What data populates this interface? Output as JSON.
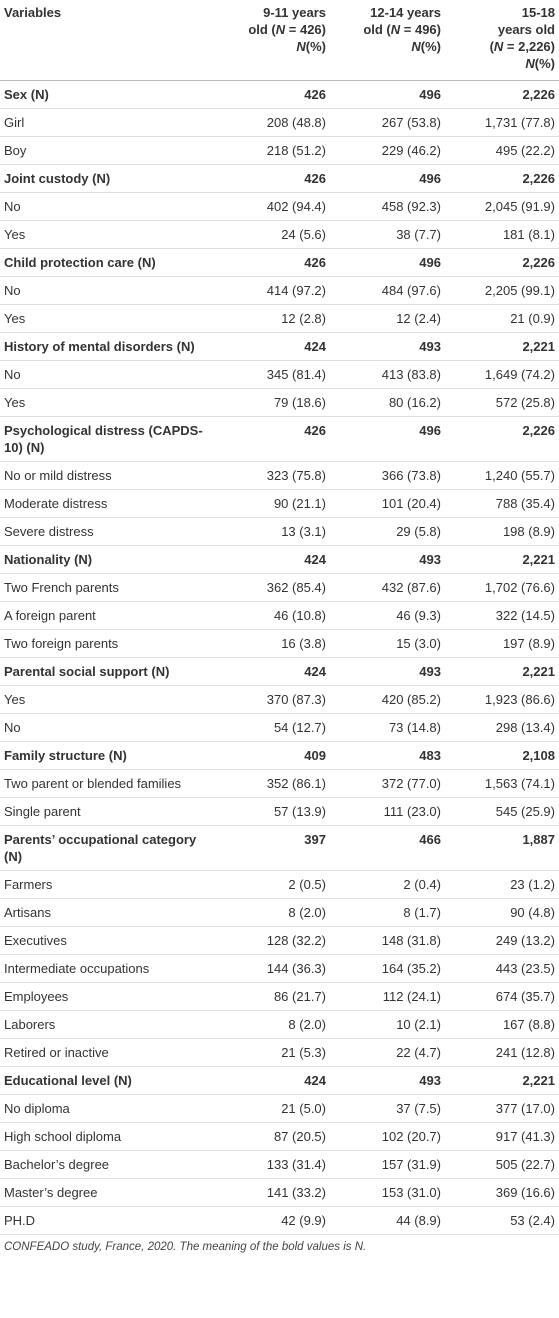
{
  "table": {
    "header": [
      [
        [
          {
            "text": "Variables"
          }
        ]
      ],
      [
        [
          {
            "text": "9-11 years"
          }
        ],
        [
          {
            "text": "old ("
          },
          {
            "text": "N",
            "italic": true
          },
          {
            "text": " = 426)"
          }
        ],
        [
          {
            "text": "N",
            "italic": true
          },
          {
            "text": "(%)"
          }
        ]
      ],
      [
        [
          {
            "text": "12-14 years"
          }
        ],
        [
          {
            "text": "old ("
          },
          {
            "text": "N",
            "italic": true
          },
          {
            "text": " = 496)"
          }
        ],
        [
          {
            "text": "N",
            "italic": true
          },
          {
            "text": "(%)"
          }
        ]
      ],
      [
        [
          {
            "text": "15-18"
          }
        ],
        [
          {
            "text": "years old"
          }
        ],
        [
          {
            "text": "("
          },
          {
            "text": "N",
            "italic": true
          },
          {
            "text": " = 2,226)"
          }
        ],
        [
          {
            "text": "N",
            "italic": true
          },
          {
            "text": "(%)"
          }
        ]
      ]
    ],
    "rows": [
      {
        "label": "Sex (N)",
        "values": [
          "426",
          "496",
          "2,226"
        ],
        "bold": true
      },
      {
        "label": "Girl",
        "values": [
          "208 (48.8)",
          "267 (53.8)",
          "1,731 (77.8)"
        ]
      },
      {
        "label": "Boy",
        "values": [
          "218 (51.2)",
          "229 (46.2)",
          "495 (22.2)"
        ]
      },
      {
        "label": "Joint custody (N)",
        "values": [
          "426",
          "496",
          "2,226"
        ],
        "bold": true
      },
      {
        "label": "No",
        "values": [
          "402 (94.4)",
          "458 (92.3)",
          "2,045 (91.9)"
        ]
      },
      {
        "label": "Yes",
        "values": [
          "24 (5.6)",
          "38 (7.7)",
          "181 (8.1)"
        ]
      },
      {
        "label": "Child protection care (N)",
        "values": [
          "426",
          "496",
          "2,226"
        ],
        "bold": true
      },
      {
        "label": "No",
        "values": [
          "414 (97.2)",
          "484 (97.6)",
          "2,205 (99.1)"
        ]
      },
      {
        "label": "Yes",
        "values": [
          "12 (2.8)",
          "12 (2.4)",
          "21 (0.9)"
        ]
      },
      {
        "label": "History of mental disorders (N)",
        "values": [
          "424",
          "493",
          "2,221"
        ],
        "bold": true
      },
      {
        "label": "No",
        "values": [
          "345 (81.4)",
          "413 (83.8)",
          "1,649 (74.2)"
        ]
      },
      {
        "label": "Yes",
        "values": [
          "79 (18.6)",
          "80 (16.2)",
          "572 (25.8)"
        ]
      },
      {
        "label": "Psychological distress (CAPDS-10) (N)",
        "values": [
          "426",
          "496",
          "2,226"
        ],
        "bold": true
      },
      {
        "label": "No or mild distress",
        "values": [
          "323 (75.8)",
          "366 (73.8)",
          "1,240 (55.7)"
        ]
      },
      {
        "label": "Moderate distress",
        "values": [
          "90 (21.1)",
          "101 (20.4)",
          "788 (35.4)"
        ]
      },
      {
        "label": "Severe distress",
        "values": [
          "13 (3.1)",
          "29 (5.8)",
          "198 (8.9)"
        ]
      },
      {
        "label": "Nationality (N)",
        "values": [
          "424",
          "493",
          "2,221"
        ],
        "bold": true
      },
      {
        "label": "Two French parents",
        "values": [
          "362 (85.4)",
          "432 (87.6)",
          "1,702 (76.6)"
        ]
      },
      {
        "label": "A foreign parent",
        "values": [
          "46 (10.8)",
          "46 (9.3)",
          "322 (14.5)"
        ]
      },
      {
        "label": "Two foreign parents",
        "values": [
          "16 (3.8)",
          "15 (3.0)",
          "197 (8.9)"
        ]
      },
      {
        "label": "Parental social support (N)",
        "values": [
          "424",
          "493",
          "2,221"
        ],
        "bold": true
      },
      {
        "label": "Yes",
        "values": [
          "370 (87.3)",
          "420 (85.2)",
          "1,923 (86.6)"
        ]
      },
      {
        "label": "No",
        "values": [
          "54 (12.7)",
          "73 (14.8)",
          "298 (13.4)"
        ]
      },
      {
        "label": "Family structure (N)",
        "values": [
          "409",
          "483",
          "2,108"
        ],
        "bold": true
      },
      {
        "label": "Two parent or blended families",
        "values": [
          "352 (86.1)",
          "372 (77.0)",
          "1,563 (74.1)"
        ]
      },
      {
        "label": "Single parent",
        "values": [
          "57 (13.9)",
          "111 (23.0)",
          "545 (25.9)"
        ]
      },
      {
        "label": "Parents’ occupational category (N)",
        "values": [
          "397",
          "466",
          "1,887"
        ],
        "bold": true
      },
      {
        "label": "Farmers",
        "values": [
          "2 (0.5)",
          "2 (0.4)",
          "23 (1.2)"
        ]
      },
      {
        "label": "Artisans",
        "values": [
          "8 (2.0)",
          "8 (1.7)",
          "90 (4.8)"
        ]
      },
      {
        "label": "Executives",
        "values": [
          "128 (32.2)",
          "148 (31.8)",
          "249 (13.2)"
        ]
      },
      {
        "label": "Intermediate occupations",
        "values": [
          "144 (36.3)",
          "164 (35.2)",
          "443 (23.5)"
        ]
      },
      {
        "label": "Employees",
        "values": [
          "86 (21.7)",
          "112 (24.1)",
          "674 (35.7)"
        ]
      },
      {
        "label": "Laborers",
        "values": [
          "8 (2.0)",
          "10 (2.1)",
          "167 (8.8)"
        ]
      },
      {
        "label": "Retired or inactive",
        "values": [
          "21 (5.3)",
          "22 (4.7)",
          "241 (12.8)"
        ]
      },
      {
        "label": "Educational level (N)",
        "values": [
          "424",
          "493",
          "2,221"
        ],
        "bold": true
      },
      {
        "label": "No diploma",
        "values": [
          "21 (5.0)",
          "37 (7.5)",
          "377 (17.0)"
        ]
      },
      {
        "label": "High school diploma",
        "values": [
          "87 (20.5)",
          "102 (20.7)",
          "917 (41.3)"
        ]
      },
      {
        "label": "Bachelor’s degree",
        "values": [
          "133 (31.4)",
          "157 (31.9)",
          "505 (22.7)"
        ]
      },
      {
        "label": "Master’s degree",
        "values": [
          "141 (33.2)",
          "153 (31.0)",
          "369 (16.6)"
        ]
      },
      {
        "label": "PH.D",
        "values": [
          "42 (9.9)",
          "44 (8.9)",
          "53 (2.4)"
        ]
      }
    ],
    "footnote": "CONFEADO study, France, 2020. The meaning of the bold values is N."
  }
}
